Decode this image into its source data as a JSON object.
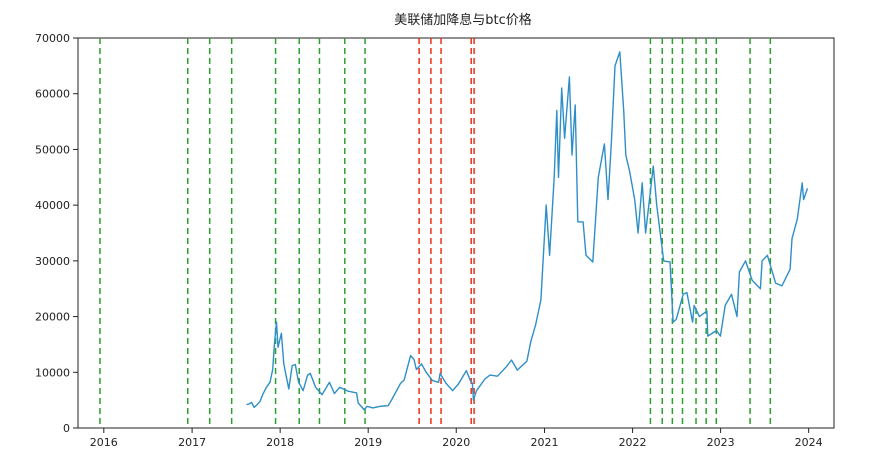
{
  "chart_data": {
    "type": "line",
    "title": "美联储加降息与btc价格",
    "xlabel": "",
    "ylabel": "",
    "x_domain": [
      "2015-09-16",
      "2024-04-15"
    ],
    "ylim": [
      0,
      70000
    ],
    "y_ticks": [
      0,
      10000,
      20000,
      30000,
      40000,
      50000,
      60000,
      70000
    ],
    "x_ticks": [
      {
        "date": "2016-01-01",
        "label": "2016"
      },
      {
        "date": "2017-01-01",
        "label": "2017"
      },
      {
        "date": "2018-01-01",
        "label": "2018"
      },
      {
        "date": "2019-01-01",
        "label": "2019"
      },
      {
        "date": "2020-01-01",
        "label": "2020"
      },
      {
        "date": "2021-01-01",
        "label": "2021"
      },
      {
        "date": "2022-01-01",
        "label": "2022"
      },
      {
        "date": "2023-01-01",
        "label": "2023"
      },
      {
        "date": "2024-01-01",
        "label": "2024"
      }
    ],
    "grid": false,
    "legend": "none",
    "colors": {
      "line": "#2e8fc8",
      "rate_hike": "#2ca02c",
      "rate_cut": "#e8311a",
      "axis": "#222222"
    },
    "series": [
      {
        "points": [
          [
            "2017-08-15",
            4200
          ],
          [
            "2017-08-25",
            4300
          ],
          [
            "2017-09-05",
            4600
          ],
          [
            "2017-09-15",
            3700
          ],
          [
            "2017-09-28",
            4200
          ],
          [
            "2017-10-10",
            4800
          ],
          [
            "2017-10-20",
            5900
          ],
          [
            "2017-11-05",
            7300
          ],
          [
            "2017-11-20",
            8200
          ],
          [
            "2017-12-01",
            10500
          ],
          [
            "2017-12-08",
            15000
          ],
          [
            "2017-12-17",
            19000
          ],
          [
            "2017-12-23",
            14500
          ],
          [
            "2018-01-06",
            17000
          ],
          [
            "2018-01-16",
            11500
          ],
          [
            "2018-02-06",
            7000
          ],
          [
            "2018-02-20",
            11200
          ],
          [
            "2018-03-05",
            11400
          ],
          [
            "2018-03-18",
            8300
          ],
          [
            "2018-04-06",
            6700
          ],
          [
            "2018-04-25",
            9500
          ],
          [
            "2018-05-06",
            9800
          ],
          [
            "2018-05-28",
            7300
          ],
          [
            "2018-06-24",
            6000
          ],
          [
            "2018-07-24",
            8200
          ],
          [
            "2018-08-14",
            6200
          ],
          [
            "2018-09-05",
            7300
          ],
          [
            "2018-10-10",
            6600
          ],
          [
            "2018-11-14",
            6300
          ],
          [
            "2018-11-20",
            4500
          ],
          [
            "2018-12-15",
            3300
          ],
          [
            "2018-12-28",
            3900
          ],
          [
            "2019-01-20",
            3600
          ],
          [
            "2019-02-20",
            3900
          ],
          [
            "2019-03-25",
            4000
          ],
          [
            "2019-04-10",
            5200
          ],
          [
            "2019-05-15",
            8000
          ],
          [
            "2019-05-30",
            8600
          ],
          [
            "2019-06-26",
            13000
          ],
          [
            "2019-07-10",
            12300
          ],
          [
            "2019-07-20",
            10500
          ],
          [
            "2019-08-10",
            11500
          ],
          [
            "2019-08-28",
            10100
          ],
          [
            "2019-09-24",
            8500
          ],
          [
            "2019-10-20",
            8200
          ],
          [
            "2019-10-26",
            9800
          ],
          [
            "2019-11-20",
            8000
          ],
          [
            "2019-12-17",
            6700
          ],
          [
            "2020-01-10",
            7900
          ],
          [
            "2020-02-12",
            10300
          ],
          [
            "2020-02-28",
            8600
          ],
          [
            "2020-03-08",
            8000
          ],
          [
            "2020-03-12",
            5000
          ],
          [
            "2020-03-25",
            6700
          ],
          [
            "2020-04-29",
            8800
          ],
          [
            "2020-05-20",
            9500
          ],
          [
            "2020-06-20",
            9300
          ],
          [
            "2020-07-27",
            11000
          ],
          [
            "2020-08-17",
            12200
          ],
          [
            "2020-09-10",
            10400
          ],
          [
            "2020-10-20",
            12000
          ],
          [
            "2020-11-05",
            15500
          ],
          [
            "2020-11-25",
            18500
          ],
          [
            "2020-12-17",
            23000
          ],
          [
            "2021-01-08",
            40000
          ],
          [
            "2021-01-22",
            31000
          ],
          [
            "2021-02-10",
            45000
          ],
          [
            "2021-02-21",
            57000
          ],
          [
            "2021-02-28",
            45000
          ],
          [
            "2021-03-13",
            61000
          ],
          [
            "2021-03-25",
            52000
          ],
          [
            "2021-04-14",
            63000
          ],
          [
            "2021-04-25",
            49000
          ],
          [
            "2021-05-08",
            58000
          ],
          [
            "2021-05-19",
            37000
          ],
          [
            "2021-06-10",
            37000
          ],
          [
            "2021-06-22",
            31000
          ],
          [
            "2021-07-20",
            29800
          ],
          [
            "2021-08-12",
            45000
          ],
          [
            "2021-09-06",
            51000
          ],
          [
            "2021-09-21",
            41000
          ],
          [
            "2021-10-05",
            51000
          ],
          [
            "2021-10-20",
            65000
          ],
          [
            "2021-11-09",
            67500
          ],
          [
            "2021-11-25",
            57000
          ],
          [
            "2021-12-04",
            49000
          ],
          [
            "2021-12-20",
            46000
          ],
          [
            "2022-01-10",
            41000
          ],
          [
            "2022-01-24",
            35000
          ],
          [
            "2022-02-10",
            44000
          ],
          [
            "2022-02-24",
            35000
          ],
          [
            "2022-03-28",
            47000
          ],
          [
            "2022-04-11",
            40000
          ],
          [
            "2022-05-10",
            30000
          ],
          [
            "2022-06-05",
            29800
          ],
          [
            "2022-06-18",
            19000
          ],
          [
            "2022-07-01",
            19500
          ],
          [
            "2022-07-30",
            24000
          ],
          [
            "2022-08-14",
            24300
          ],
          [
            "2022-09-07",
            19000
          ],
          [
            "2022-09-13",
            22000
          ],
          [
            "2022-10-05",
            20000
          ],
          [
            "2022-11-05",
            21000
          ],
          [
            "2022-11-09",
            16500
          ],
          [
            "2022-12-15",
            17500
          ],
          [
            "2022-12-31",
            16500
          ],
          [
            "2023-01-20",
            22000
          ],
          [
            "2023-02-15",
            24000
          ],
          [
            "2023-03-10",
            20000
          ],
          [
            "2023-03-20",
            28000
          ],
          [
            "2023-04-14",
            30000
          ],
          [
            "2023-05-12",
            26500
          ],
          [
            "2023-06-15",
            25000
          ],
          [
            "2023-06-22",
            30000
          ],
          [
            "2023-07-14",
            31000
          ],
          [
            "2023-08-17",
            26000
          ],
          [
            "2023-09-12",
            25500
          ],
          [
            "2023-10-16",
            28500
          ],
          [
            "2023-10-24",
            34000
          ],
          [
            "2023-11-15",
            37500
          ],
          [
            "2023-12-05",
            44000
          ],
          [
            "2023-12-11",
            41000
          ],
          [
            "2023-12-27",
            43000
          ]
        ]
      }
    ],
    "rate_hikes": [
      "2015-12-16",
      "2016-12-14",
      "2017-03-15",
      "2017-06-14",
      "2017-12-13",
      "2018-03-21",
      "2018-06-13",
      "2018-09-26",
      "2018-12-19",
      "2022-03-16",
      "2022-05-04",
      "2022-06-15",
      "2022-07-27",
      "2022-09-21",
      "2022-11-02",
      "2022-12-14",
      "2023-05-03",
      "2023-07-26"
    ],
    "rate_cuts": [
      "2019-07-31",
      "2019-09-18",
      "2019-10-30",
      "2020-03-03",
      "2020-03-15"
    ]
  }
}
